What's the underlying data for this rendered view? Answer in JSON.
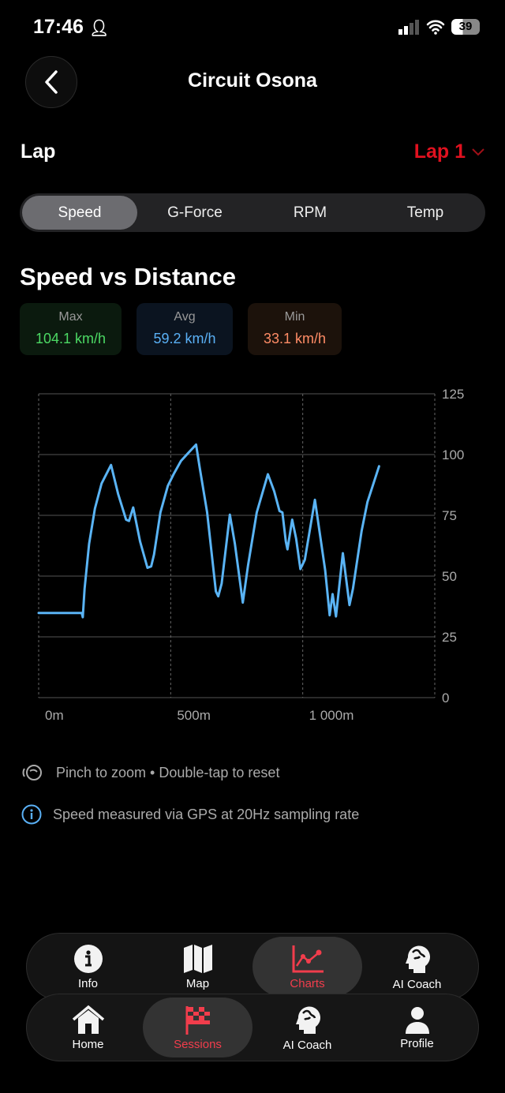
{
  "status_bar": {
    "time": "17:46",
    "battery": "39"
  },
  "header": {
    "title": "Circuit Osona"
  },
  "lap": {
    "label": "Lap",
    "selected": "Lap 1"
  },
  "tabs": [
    {
      "label": "Speed",
      "active": true
    },
    {
      "label": "G-Force"
    },
    {
      "label": "RPM"
    },
    {
      "label": "Temp"
    }
  ],
  "section_title": "Speed vs Distance",
  "stats": [
    {
      "label": "Max",
      "value": "104.1 km/h",
      "color": "#4cd964",
      "bg": "#0b1a0e"
    },
    {
      "label": "Avg",
      "value": "59.2 km/h",
      "color": "#5ab0f5",
      "bg": "#0b1420"
    },
    {
      "label": "Min",
      "value": "33.1 km/h",
      "color": "#ff8c66",
      "bg": "#1c120b"
    }
  ],
  "chart_data": {
    "type": "line",
    "title": "",
    "xlabel": "",
    "ylabel": "",
    "xlim": [
      0,
      1500
    ],
    "ylim": [
      0,
      125
    ],
    "x_ticks": [
      {
        "v": 0,
        "label": "0m"
      },
      {
        "v": 500,
        "label": "500m"
      },
      {
        "v": 1000,
        "label": "1 000m"
      }
    ],
    "y_ticks": [
      0,
      25,
      50,
      75,
      100,
      125
    ],
    "grid": true,
    "line_color": "#5ab4f5",
    "x": [
      0,
      163,
      167,
      174,
      191,
      213,
      238,
      274,
      301,
      331,
      342,
      358,
      384,
      412,
      426,
      437,
      461,
      489,
      511,
      539,
      566,
      596,
      610,
      638,
      671,
      680,
      693,
      724,
      743,
      773,
      793,
      826,
      868,
      892,
      912,
      923,
      936,
      942,
      960,
      975,
      991,
      1008,
      1046,
      1085,
      1102,
      1113,
      1126,
      1152,
      1177,
      1190,
      1223,
      1245,
      1289
    ],
    "y": [
      34.8,
      34.8,
      33.1,
      44.8,
      63.2,
      77.8,
      88.1,
      95.7,
      83.8,
      73.2,
      72.7,
      78.2,
      64.3,
      53.4,
      54.0,
      58.9,
      76.2,
      87.1,
      91.9,
      97.4,
      100.6,
      104.1,
      94.6,
      76.2,
      43.7,
      41.7,
      46.9,
      75.3,
      63.2,
      39.1,
      54.5,
      76.2,
      91.9,
      84.9,
      76.8,
      76.2,
      64.3,
      61.0,
      73.2,
      65.4,
      52.9,
      56.7,
      81.4,
      52.4,
      33.9,
      42.6,
      33.4,
      59.4,
      38.1,
      44.8,
      68.6,
      80.5,
      95.2
    ]
  },
  "notes": {
    "pinch": "Pinch to zoom • Double-tap to reset",
    "gps": "Speed measured via GPS at 20Hz sampling rate"
  },
  "session_nav": [
    {
      "label": "Info",
      "icon": "info-icon"
    },
    {
      "label": "Map",
      "icon": "map-icon"
    },
    {
      "label": "Charts",
      "icon": "chart-icon",
      "active": true
    },
    {
      "label": "AI Coach",
      "icon": "brain-head-icon"
    }
  ],
  "main_nav": [
    {
      "label": "Home",
      "icon": "home-icon"
    },
    {
      "label": "Sessions",
      "icon": "checkered-flag-icon",
      "active": true
    },
    {
      "label": "AI Coach",
      "icon": "brain-head-icon"
    },
    {
      "label": "Profile",
      "icon": "person-icon"
    }
  ],
  "accent": "#f23d4c"
}
